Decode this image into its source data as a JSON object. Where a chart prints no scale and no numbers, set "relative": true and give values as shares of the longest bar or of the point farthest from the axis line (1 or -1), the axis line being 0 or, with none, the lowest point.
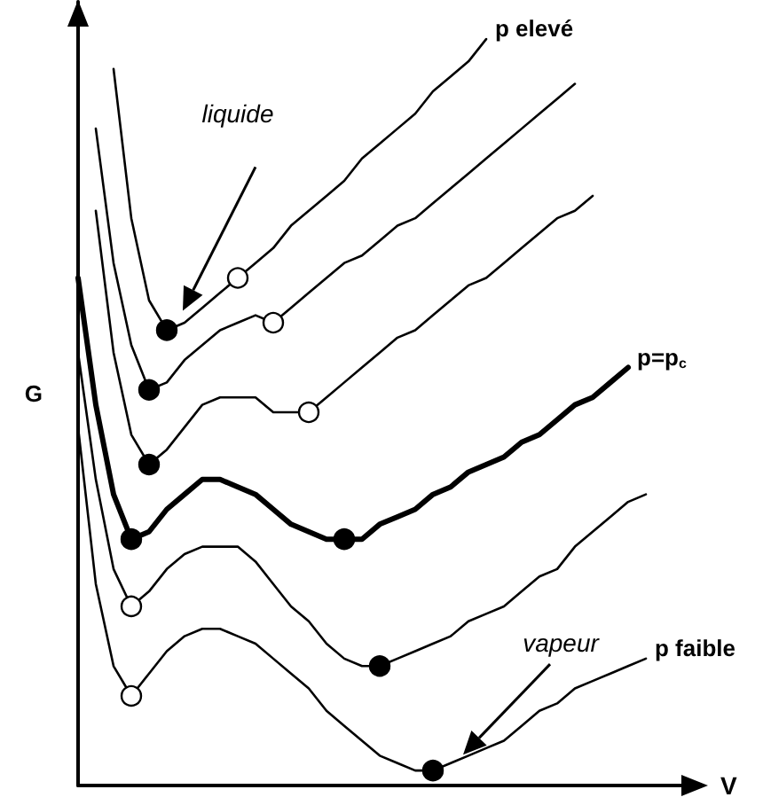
{
  "chart_data": {
    "type": "line",
    "relative": true,
    "xlabel": "V",
    "ylabel": "G",
    "annotations": [
      "liquide",
      "vapeur"
    ],
    "categories": [
      null,
      null,
      null,
      null,
      null,
      null,
      null,
      null,
      null,
      null,
      null,
      null,
      null,
      null,
      null,
      null,
      null,
      null,
      null,
      null,
      null,
      null,
      null,
      null,
      null,
      null,
      null,
      null,
      null,
      null,
      null,
      null,
      null,
      null,
      null
    ],
    "series": [
      {
        "name": "p elevé",
        "color": "#000000",
        "values": [
          null,
          null,
          0.96,
          0.76,
          0.65,
          0.61,
          0.62,
          0.64,
          0.66,
          0.68,
          0.7,
          0.72,
          0.75,
          0.77,
          0.79,
          0.81,
          0.84,
          0.86,
          0.88,
          0.9,
          0.93,
          0.95,
          0.97,
          1.0,
          null,
          null,
          null,
          null,
          null,
          null,
          null,
          null,
          null,
          null,
          null
        ],
        "colors": [
          null,
          null,
          null,
          null,
          null,
          "#000000",
          null,
          null,
          null,
          "#ffffff",
          null,
          null,
          null,
          null,
          null,
          null,
          null,
          null,
          null,
          null,
          null,
          null,
          null,
          null,
          null,
          null,
          null,
          null,
          null,
          null,
          null,
          null,
          null,
          null,
          null
        ]
      },
      {
        "color": "#000000",
        "values": [
          null,
          0.88,
          0.7,
          0.59,
          0.53,
          0.54,
          0.57,
          0.59,
          0.61,
          0.62,
          0.63,
          0.62,
          0.64,
          0.66,
          0.68,
          0.7,
          0.71,
          0.73,
          0.75,
          0.76,
          0.78,
          0.8,
          0.82,
          0.84,
          0.86,
          0.88,
          0.9,
          0.92,
          0.94,
          null,
          null,
          null,
          null,
          null,
          null
        ],
        "colors": [
          null,
          null,
          null,
          null,
          "#000000",
          null,
          null,
          null,
          null,
          null,
          null,
          "#ffffff",
          null,
          null,
          null,
          null,
          null,
          null,
          null,
          null,
          null,
          null,
          null,
          null,
          null,
          null,
          null,
          null,
          null,
          null,
          null,
          null,
          null,
          null,
          null
        ]
      },
      {
        "color": "#000000",
        "values": [
          null,
          0.77,
          0.58,
          0.47,
          0.43,
          0.45,
          0.48,
          0.51,
          0.52,
          0.52,
          0.52,
          0.5,
          0.5,
          0.5,
          0.52,
          0.54,
          0.56,
          0.58,
          0.6,
          0.61,
          0.63,
          0.65,
          0.67,
          0.68,
          0.7,
          0.72,
          0.74,
          0.76,
          0.77,
          0.79,
          null,
          null,
          null,
          null,
          null
        ],
        "colors": [
          null,
          null,
          null,
          null,
          "#000000",
          null,
          null,
          null,
          null,
          null,
          null,
          null,
          null,
          "#ffffff",
          null,
          null,
          null,
          null,
          null,
          null,
          null,
          null,
          null,
          null,
          null,
          null,
          null,
          null,
          null,
          null,
          null,
          null,
          null,
          null,
          null
        ]
      },
      {
        "name": "p=p$_{c}$",
        "color": "#000000",
        "values": [
          0.68,
          0.51,
          0.39,
          0.33,
          0.34,
          0.37,
          0.39,
          0.41,
          0.41,
          0.4,
          0.39,
          0.37,
          0.35,
          0.34,
          0.33,
          0.33,
          0.33,
          0.35,
          0.36,
          0.37,
          0.39,
          0.4,
          0.42,
          0.43,
          0.44,
          0.46,
          0.47,
          0.49,
          0.51,
          0.52,
          0.54,
          0.56,
          null,
          null,
          null
        ],
        "colors": [
          null,
          null,
          null,
          "#000000",
          null,
          null,
          null,
          null,
          null,
          null,
          null,
          null,
          null,
          null,
          null,
          "#000000",
          null,
          null,
          null,
          null,
          null,
          null,
          null,
          null,
          null,
          null,
          null,
          null,
          null,
          null,
          null,
          null,
          null,
          null,
          null
        ]
      },
      {
        "color": "#000000",
        "values": [
          0.58,
          0.41,
          0.29,
          0.24,
          0.26,
          0.29,
          0.31,
          0.32,
          0.32,
          0.32,
          0.3,
          0.27,
          0.24,
          0.22,
          0.19,
          0.17,
          0.16,
          0.16,
          0.17,
          0.18,
          0.19,
          0.2,
          0.22,
          0.23,
          0.24,
          0.26,
          0.28,
          0.29,
          0.32,
          0.34,
          0.36,
          0.38,
          0.39,
          null,
          null
        ],
        "colors": [
          null,
          null,
          null,
          "#ffffff",
          null,
          null,
          null,
          null,
          null,
          null,
          null,
          null,
          null,
          null,
          null,
          null,
          null,
          "#000000",
          null,
          null,
          null,
          null,
          null,
          null,
          null,
          null,
          null,
          null,
          null,
          null,
          null,
          null,
          null,
          null,
          null
        ]
      },
      {
        "name": "p faible",
        "color": "#000000",
        "values": [
          0.48,
          0.27,
          0.16,
          0.12,
          0.15,
          0.18,
          0.2,
          0.21,
          0.21,
          0.2,
          0.19,
          0.17,
          0.15,
          0.13,
          0.1,
          0.08,
          0.06,
          0.04,
          0.03,
          0.02,
          0.02,
          0.03,
          0.04,
          0.05,
          0.06,
          0.08,
          0.1,
          0.11,
          0.13,
          0.14,
          0.15,
          0.16,
          0.17,
          null,
          null
        ],
        "colors": [
          null,
          null,
          null,
          "#ffffff",
          null,
          null,
          null,
          null,
          null,
          null,
          null,
          null,
          null,
          null,
          null,
          null,
          null,
          null,
          null,
          null,
          "#000000",
          null,
          null,
          null,
          null,
          null,
          null,
          null,
          null,
          null,
          null,
          null,
          null,
          null,
          null
        ]
      }
    ]
  }
}
